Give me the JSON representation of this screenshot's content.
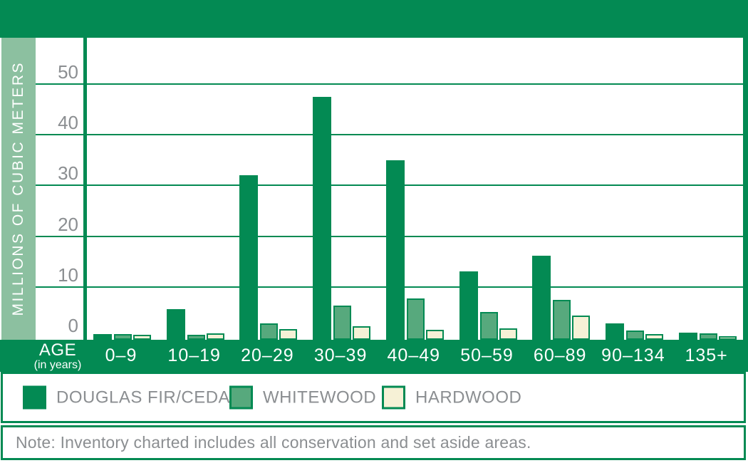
{
  "colors": {
    "brand_green": "#038a53",
    "sage_strip": "#8cc0a0",
    "whitewood_fill": "#57a97d",
    "hardwood_fill": "#f6f1d6",
    "text_gray": "#8b8e91",
    "white": "#ffffff"
  },
  "chart_data": {
    "type": "bar",
    "title": "",
    "ylabel": "MILLIONS OF CUBIC METERS",
    "xlabel": "AGE",
    "xlabel_sub": "(in years)",
    "grid": true,
    "legend_position": "bottom",
    "ylim": [
      0,
      60
    ],
    "yticks": [
      0,
      10,
      20,
      30,
      40,
      50
    ],
    "categories": [
      "0–9",
      "10–19",
      "20–29",
      "30–39",
      "40–49",
      "50–59",
      "60–89",
      "90–134",
      "135+"
    ],
    "series": [
      {
        "name": "DOUGLAS FIR/CEDAR",
        "fill": "#038a53",
        "bordered": false,
        "values": [
          0.7,
          5.6,
          32,
          47.5,
          35,
          13,
          16.2,
          2.8,
          1.0
        ]
      },
      {
        "name": "WHITEWOOD",
        "fill": "#57a97d",
        "bordered": true,
        "border": "#038a53",
        "values": [
          0.7,
          0.6,
          2.8,
          6.3,
          7.7,
          5.0,
          7.4,
          1.4,
          0.8
        ]
      },
      {
        "name": "HARDWOOD",
        "fill": "#f6f1d6",
        "bordered": true,
        "border": "#038a53",
        "values": [
          0.5,
          0.8,
          1.7,
          2.3,
          1.5,
          1.8,
          4.4,
          0.7,
          0.3
        ]
      }
    ]
  },
  "note": "Note: Inventory charted includes all conservation and set aside areas."
}
